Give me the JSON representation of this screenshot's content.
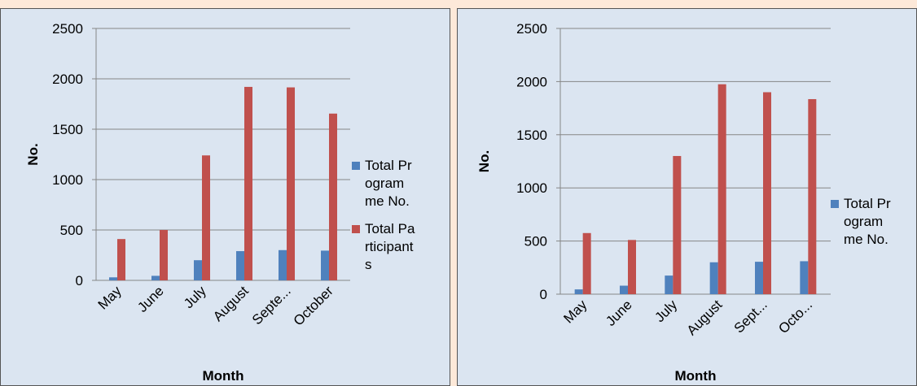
{
  "chart_data": [
    {
      "type": "bar",
      "categories": [
        "May",
        "June",
        "July",
        "August",
        "Septe...",
        "October"
      ],
      "series": [
        {
          "name": "Total Programme No.",
          "color": "#4f81bd",
          "values": [
            30,
            45,
            200,
            290,
            300,
            295
          ]
        },
        {
          "name": "Total Participants",
          "color": "#c0504d",
          "values": [
            410,
            500,
            1240,
            1920,
            1915,
            1655
          ]
        }
      ],
      "xlabel": "Month",
      "ylabel": "No.",
      "ylim": [
        0,
        2500
      ],
      "yticks": [
        0,
        500,
        1000,
        1500,
        2000,
        2500
      ],
      "grid": true,
      "legend": "right"
    },
    {
      "type": "bar",
      "categories": [
        "May",
        "June",
        "July",
        "August",
        "Sept...",
        "Octo..."
      ],
      "series": [
        {
          "name": "Total Programme No.",
          "color": "#4f81bd",
          "values": [
            45,
            80,
            175,
            300,
            305,
            310
          ]
        },
        {
          "color": "#c0504d",
          "values": [
            575,
            510,
            1300,
            1975,
            1900,
            1835
          ]
        }
      ],
      "xlabel": "Month",
      "ylabel": "No.",
      "ylim": [
        0,
        2500
      ],
      "yticks": [
        0,
        500,
        1000,
        1500,
        2000,
        2500
      ],
      "grid": true,
      "legend": "right"
    }
  ]
}
